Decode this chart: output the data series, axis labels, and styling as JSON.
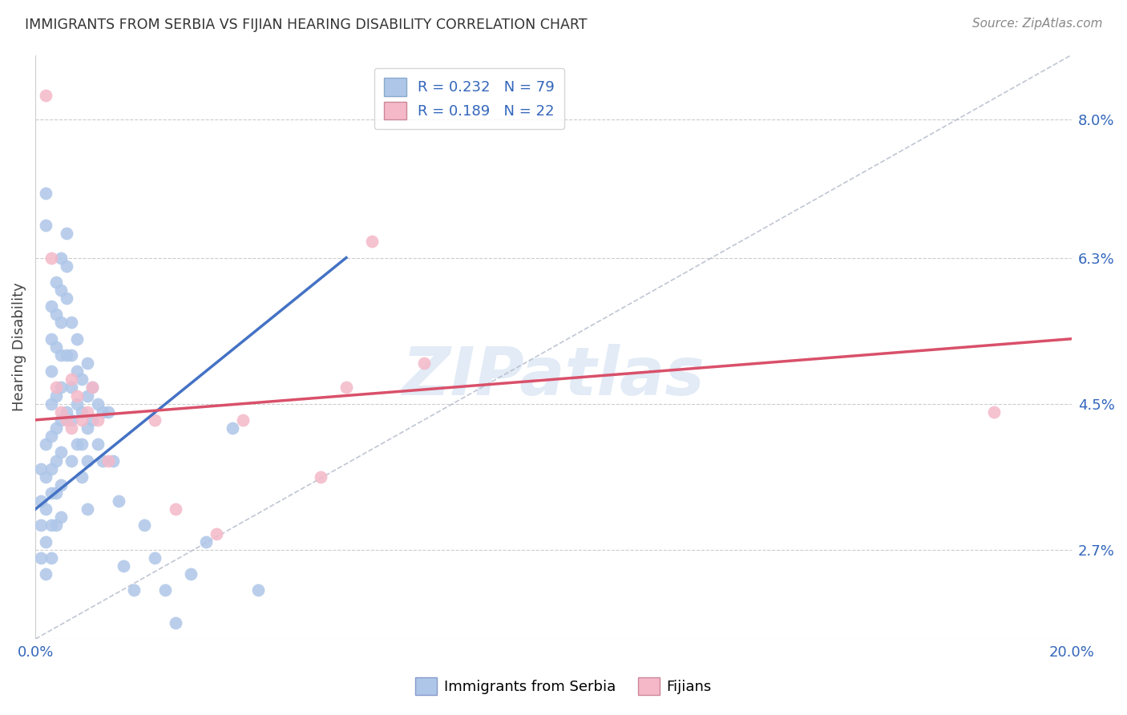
{
  "title": "IMMIGRANTS FROM SERBIA VS FIJIAN HEARING DISABILITY CORRELATION CHART",
  "source": "Source: ZipAtlas.com",
  "ylabel": "Hearing Disability",
  "xlim": [
    0.0,
    0.2
  ],
  "ylim": [
    0.016,
    0.088
  ],
  "yticks": [
    0.027,
    0.045,
    0.063,
    0.08
  ],
  "ytick_labels": [
    "2.7%",
    "4.5%",
    "6.3%",
    "8.0%"
  ],
  "xticks": [
    0.0,
    0.04,
    0.08,
    0.12,
    0.16,
    0.2
  ],
  "xtick_labels": [
    "0.0%",
    "",
    "",
    "",
    "",
    "20.0%"
  ],
  "serbia_R": 0.232,
  "serbia_N": 79,
  "fijian_R": 0.189,
  "fijian_N": 22,
  "background_color": "#ffffff",
  "grid_color": "#cccccc",
  "serbia_color": "#aec6e8",
  "fijian_color": "#f4b8c8",
  "serbia_line_color": "#4472c4",
  "fijian_line_color": "#d9506a",
  "diagonal_color": "#b0b8c8",
  "watermark_text": "ZIPatlas",
  "watermark_color": "#d0dff0",
  "serbia_x": [
    0.001,
    0.001,
    0.001,
    0.001,
    0.002,
    0.002,
    0.002,
    0.002,
    0.002,
    0.002,
    0.002,
    0.003,
    0.003,
    0.003,
    0.003,
    0.003,
    0.003,
    0.003,
    0.003,
    0.003,
    0.004,
    0.004,
    0.004,
    0.004,
    0.004,
    0.004,
    0.004,
    0.004,
    0.005,
    0.005,
    0.005,
    0.005,
    0.005,
    0.005,
    0.005,
    0.005,
    0.005,
    0.006,
    0.006,
    0.006,
    0.006,
    0.006,
    0.007,
    0.007,
    0.007,
    0.007,
    0.007,
    0.008,
    0.008,
    0.008,
    0.008,
    0.009,
    0.009,
    0.009,
    0.009,
    0.01,
    0.01,
    0.01,
    0.01,
    0.01,
    0.011,
    0.011,
    0.012,
    0.012,
    0.013,
    0.013,
    0.014,
    0.015,
    0.016,
    0.017,
    0.019,
    0.021,
    0.023,
    0.025,
    0.027,
    0.03,
    0.033,
    0.038,
    0.043
  ],
  "serbia_y": [
    0.037,
    0.033,
    0.03,
    0.026,
    0.071,
    0.067,
    0.04,
    0.036,
    0.032,
    0.028,
    0.024,
    0.057,
    0.053,
    0.049,
    0.045,
    0.041,
    0.037,
    0.034,
    0.03,
    0.026,
    0.06,
    0.056,
    0.052,
    0.046,
    0.042,
    0.038,
    0.034,
    0.03,
    0.063,
    0.059,
    0.055,
    0.051,
    0.047,
    0.043,
    0.039,
    0.035,
    0.031,
    0.066,
    0.062,
    0.058,
    0.051,
    0.044,
    0.055,
    0.051,
    0.047,
    0.043,
    0.038,
    0.053,
    0.049,
    0.045,
    0.04,
    0.048,
    0.044,
    0.04,
    0.036,
    0.05,
    0.046,
    0.042,
    0.038,
    0.032,
    0.047,
    0.043,
    0.045,
    0.04,
    0.044,
    0.038,
    0.044,
    0.038,
    0.033,
    0.025,
    0.022,
    0.03,
    0.026,
    0.022,
    0.018,
    0.024,
    0.028,
    0.042,
    0.022
  ],
  "fijian_x": [
    0.002,
    0.003,
    0.004,
    0.005,
    0.006,
    0.007,
    0.007,
    0.008,
    0.009,
    0.01,
    0.011,
    0.012,
    0.014,
    0.023,
    0.027,
    0.035,
    0.04,
    0.055,
    0.06,
    0.065,
    0.075,
    0.185
  ],
  "fijian_y": [
    0.083,
    0.063,
    0.047,
    0.044,
    0.043,
    0.048,
    0.042,
    0.046,
    0.043,
    0.044,
    0.047,
    0.043,
    0.038,
    0.043,
    0.032,
    0.029,
    0.043,
    0.036,
    0.047,
    0.065,
    0.05,
    0.044
  ],
  "serbia_line_x0": 0.0,
  "serbia_line_y0": 0.032,
  "serbia_line_x1": 0.06,
  "serbia_line_y1": 0.063,
  "fijian_line_x0": 0.0,
  "fijian_line_y0": 0.043,
  "fijian_line_x1": 0.2,
  "fijian_line_y1": 0.053
}
